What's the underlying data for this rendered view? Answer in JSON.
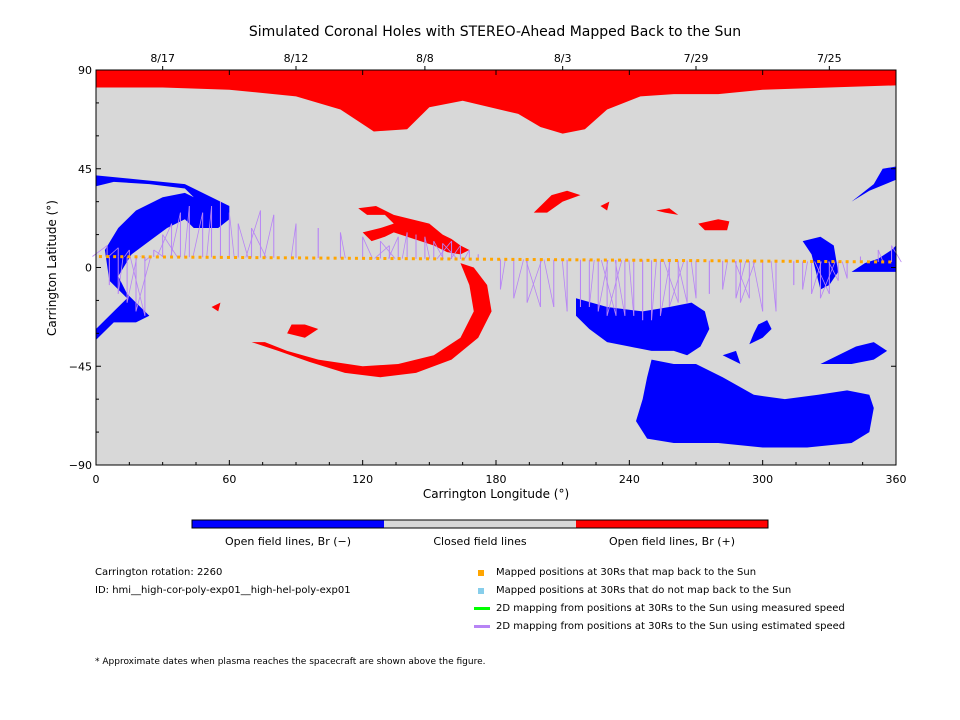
{
  "chart_data": {
    "type": "map",
    "title": "Simulated Coronal Holes with STEREO-Ahead Mapped Back to the Sun",
    "xlabel": "Carrington Longitude (°)",
    "ylabel": "Carrington Latitude (°)",
    "xlim": [
      0,
      360
    ],
    "ylim": [
      -90,
      90
    ],
    "x_ticks": [
      0,
      60,
      120,
      180,
      240,
      300,
      360
    ],
    "y_ticks": [
      -90,
      -45,
      0,
      45,
      90
    ],
    "x_tick_labels": [
      "0",
      "60",
      "120",
      "180",
      "240",
      "300",
      "360"
    ],
    "y_tick_labels": [
      "−90",
      "−45",
      "0",
      "45",
      "90"
    ],
    "top_dates": [
      {
        "label": "8/17",
        "lon": 30
      },
      {
        "label": "8/12",
        "lon": 90
      },
      {
        "label": "8/8",
        "lon": 148
      },
      {
        "label": "8/3",
        "lon": 210
      },
      {
        "label": "7/29",
        "lon": 270
      },
      {
        "label": "7/25",
        "lon": 330
      }
    ],
    "colors": {
      "open_negative": "#0000ff",
      "closed": "#d8d8d8",
      "open_positive": "#ff0000",
      "mapped_back": "#ffa500",
      "not_mapped": "#87ceeb",
      "measured_speed": "#00ff00",
      "estimated_speed": "#b784f5"
    },
    "colorbar": [
      {
        "label": "Open field lines, Br (−)",
        "color": "#0000ff"
      },
      {
        "label": "Closed field lines",
        "color": "#d8d8d8"
      },
      {
        "label": "Open field lines, Br (+)",
        "color": "#ff0000"
      }
    ],
    "legend": [
      {
        "label": "Mapped positions at 30Rs that map back to the Sun",
        "kind": "square",
        "color": "#ffa500"
      },
      {
        "label": "Mapped positions at 30Rs that do not map back to the Sun",
        "kind": "square",
        "color": "#87ceeb"
      },
      {
        "label": "2D mapping from positions at 30Rs to the Sun using measured speed",
        "kind": "line",
        "color": "#00ff00"
      },
      {
        "label": "2D mapping from positions at 30Rs to the Sun using estimated speed",
        "kind": "line",
        "color": "#b784f5"
      }
    ],
    "footpoint_latitude": {
      "start": 5,
      "end": 2.5
    },
    "mapping_links": [
      [
        5,
        10
      ],
      [
        10,
        9
      ],
      [
        15,
        8
      ],
      [
        20,
        5
      ],
      [
        22,
        3
      ],
      [
        26,
        8
      ],
      [
        30,
        15
      ],
      [
        34,
        20
      ],
      [
        38,
        25
      ],
      [
        42,
        28
      ],
      [
        6,
        -8
      ],
      [
        10,
        -12
      ],
      [
        14,
        -16
      ],
      [
        18,
        -20
      ],
      [
        22,
        -22
      ],
      [
        48,
        25
      ],
      [
        52,
        28
      ],
      [
        56,
        30
      ],
      [
        60,
        25
      ],
      [
        64,
        20
      ],
      [
        70,
        18
      ],
      [
        74,
        26
      ],
      [
        80,
        24
      ],
      [
        90,
        20
      ],
      [
        100,
        18
      ],
      [
        110,
        16
      ],
      [
        120,
        14
      ],
      [
        128,
        12
      ],
      [
        132,
        10
      ],
      [
        136,
        14
      ],
      [
        140,
        16
      ],
      [
        144,
        15
      ],
      [
        148,
        14
      ],
      [
        152,
        12
      ],
      [
        156,
        11
      ],
      [
        160,
        12
      ],
      [
        164,
        10
      ],
      [
        168,
        8
      ],
      [
        172,
        6
      ],
      [
        182,
        -10
      ],
      [
        188,
        -14
      ],
      [
        194,
        -16
      ],
      [
        200,
        -18
      ],
      [
        206,
        -18
      ],
      [
        212,
        -20
      ],
      [
        218,
        -18
      ],
      [
        222,
        -18
      ],
      [
        226,
        -20
      ],
      [
        230,
        -22
      ],
      [
        234,
        -22
      ],
      [
        238,
        -22
      ],
      [
        242,
        -22
      ],
      [
        246,
        -24
      ],
      [
        250,
        -24
      ],
      [
        254,
        -22
      ],
      [
        258,
        -18
      ],
      [
        262,
        -16
      ],
      [
        266,
        -16
      ],
      [
        270,
        -14
      ],
      [
        276,
        -12
      ],
      [
        282,
        -10
      ],
      [
        288,
        -14
      ],
      [
        290,
        -16
      ],
      [
        294,
        -14
      ],
      [
        300,
        -20
      ],
      [
        306,
        -20
      ],
      [
        314,
        -8
      ],
      [
        318,
        -10
      ],
      [
        322,
        -12
      ],
      [
        326,
        -14
      ],
      [
        330,
        -12
      ],
      [
        334,
        -6
      ],
      [
        338,
        -5
      ],
      [
        344,
        5
      ],
      [
        352,
        8
      ],
      [
        358,
        10
      ]
    ],
    "regions": {
      "positive": [
        {
          "name": "north-polar-cap",
          "points": [
            [
              0,
              90
            ],
            [
              360,
              90
            ],
            [
              360,
              83
            ],
            [
              330,
              82
            ],
            [
              300,
              81
            ],
            [
              280,
              79
            ],
            [
              260,
              79
            ],
            [
              245,
              78
            ],
            [
              230,
              72
            ],
            [
              220,
              63
            ],
            [
              210,
              61
            ],
            [
              200,
              64
            ],
            [
              190,
              70
            ],
            [
              165,
              76
            ],
            [
              150,
              73
            ],
            [
              140,
              63
            ],
            [
              125,
              62
            ],
            [
              110,
              72
            ],
            [
              90,
              78
            ],
            [
              60,
              81
            ],
            [
              30,
              82
            ],
            [
              0,
              82
            ]
          ]
        },
        {
          "name": "mid-north-arc",
          "points": [
            [
              118,
              27
            ],
            [
              126,
              28
            ],
            [
              134,
              24
            ],
            [
              142,
              22
            ],
            [
              150,
              20
            ],
            [
              156,
              15
            ],
            [
              160,
              13
            ],
            [
              164,
              10
            ],
            [
              168,
              8
            ],
            [
              164,
              6
            ],
            [
              158,
              7
            ],
            [
              152,
              10
            ],
            [
              146,
              12
            ],
            [
              140,
              14
            ],
            [
              134,
              16
            ],
            [
              130,
              14
            ],
            [
              124,
              12
            ],
            [
              120,
              16
            ],
            [
              128,
              18
            ],
            [
              134,
              20
            ],
            [
              130,
              24
            ],
            [
              122,
              24
            ]
          ]
        },
        {
          "name": "small-northeast",
          "points": [
            [
              197,
              25
            ],
            [
              205,
              33
            ],
            [
              212,
              35
            ],
            [
              218,
              33
            ],
            [
              210,
              30
            ],
            [
              203,
              25
            ]
          ]
        },
        {
          "name": "tiny-patch-a",
          "points": [
            [
              227,
              28
            ],
            [
              231,
              30
            ],
            [
              230,
              26
            ]
          ]
        },
        {
          "name": "tiny-patch-b",
          "points": [
            [
              252,
              26
            ],
            [
              258,
              27
            ],
            [
              262,
              24
            ],
            [
              256,
              25
            ]
          ]
        },
        {
          "name": "tiny-patch-c",
          "points": [
            [
              271,
              20
            ],
            [
              280,
              22
            ],
            [
              285,
              21
            ],
            [
              284,
              17
            ],
            [
              274,
              17
            ]
          ]
        },
        {
          "name": "ring-south",
          "points": [
            [
              70,
              -34
            ],
            [
              82,
              -38
            ],
            [
              96,
              -43
            ],
            [
              112,
              -48
            ],
            [
              128,
              -50
            ],
            [
              144,
              -48
            ],
            [
              160,
              -42
            ],
            [
              172,
              -32
            ],
            [
              178,
              -20
            ],
            [
              176,
              -8
            ],
            [
              170,
              0
            ],
            [
              164,
              2
            ],
            [
              168,
              -8
            ],
            [
              170,
              -20
            ],
            [
              164,
              -32
            ],
            [
              152,
              -40
            ],
            [
              136,
              -44
            ],
            [
              120,
              -45
            ],
            [
              100,
              -42
            ],
            [
              86,
              -38
            ],
            [
              76,
              -34
            ]
          ]
        },
        {
          "name": "small-west",
          "points": [
            [
              52,
              -18
            ],
            [
              56,
              -16
            ],
            [
              55,
              -20
            ]
          ]
        },
        {
          "name": "small-mid",
          "points": [
            [
              86,
              -30
            ],
            [
              94,
              -32
            ],
            [
              100,
              -28
            ],
            [
              94,
              -26
            ],
            [
              88,
              -26
            ]
          ]
        }
      ],
      "negative": [
        {
          "name": "left-large",
          "points": [
            [
              0,
              42
            ],
            [
              20,
              40
            ],
            [
              40,
              38
            ],
            [
              52,
              32
            ],
            [
              60,
              28
            ],
            [
              60,
              22
            ],
            [
              55,
              18
            ],
            [
              44,
              18
            ],
            [
              40,
              22
            ],
            [
              32,
              18
            ],
            [
              24,
              12
            ],
            [
              16,
              6
            ],
            [
              10,
              -4
            ],
            [
              14,
              -12
            ],
            [
              24,
              -22
            ],
            [
              18,
              -25
            ],
            [
              8,
              -25
            ],
            [
              0,
              -33
            ],
            [
              0,
              -28
            ],
            [
              8,
              -20
            ],
            [
              14,
              -14
            ],
            [
              6,
              -6
            ],
            [
              4,
              8
            ],
            [
              10,
              18
            ],
            [
              18,
              26
            ],
            [
              30,
              32
            ],
            [
              40,
              34
            ],
            [
              44,
              32
            ],
            [
              40,
              36
            ],
            [
              24,
              38
            ],
            [
              8,
              39
            ],
            [
              0,
              37
            ]
          ]
        },
        {
          "name": "right-wrap",
          "points": [
            [
              354,
              45
            ],
            [
              360,
              46
            ],
            [
              360,
              40
            ],
            [
              348,
              35
            ],
            [
              340,
              30
            ],
            [
              350,
              38
            ]
          ]
        },
        {
          "name": "right-mid",
          "points": [
            [
              318,
              12
            ],
            [
              326,
              14
            ],
            [
              332,
              10
            ],
            [
              334,
              -2
            ],
            [
              330,
              -8
            ],
            [
              326,
              -10
            ],
            [
              324,
              -2
            ],
            [
              322,
              6
            ]
          ]
        },
        {
          "name": "right-small",
          "points": [
            [
              340,
              -2
            ],
            [
              346,
              2
            ],
            [
              352,
              4
            ],
            [
              358,
              8
            ],
            [
              360,
              10
            ],
            [
              360,
              -2
            ],
            [
              352,
              -2
            ]
          ]
        },
        {
          "name": "south-central",
          "points": [
            [
              216,
              -14
            ],
            [
              230,
              -18
            ],
            [
              246,
              -20
            ],
            [
              258,
              -18
            ],
            [
              268,
              -16
            ],
            [
              274,
              -20
            ],
            [
              276,
              -28
            ],
            [
              272,
              -36
            ],
            [
              266,
              -40
            ],
            [
              260,
              -38
            ],
            [
              250,
              -38
            ],
            [
              240,
              -36
            ],
            [
              230,
              -34
            ],
            [
              222,
              -28
            ],
            [
              216,
              -22
            ]
          ]
        },
        {
          "name": "south-elongated",
          "points": [
            [
              250,
              -42
            ],
            [
              260,
              -44
            ],
            [
              270,
              -44
            ],
            [
              282,
              -50
            ],
            [
              296,
              -58
            ],
            [
              310,
              -60
            ],
            [
              325,
              -58
            ],
            [
              338,
              -56
            ],
            [
              348,
              -58
            ],
            [
              350,
              -64
            ],
            [
              348,
              -75
            ],
            [
              340,
              -80
            ],
            [
              320,
              -82
            ],
            [
              300,
              -82
            ],
            [
              280,
              -80
            ],
            [
              260,
              -80
            ],
            [
              248,
              -78
            ],
            [
              243,
              -70
            ],
            [
              246,
              -60
            ],
            [
              248,
              -50
            ]
          ]
        },
        {
          "name": "south-finger",
          "points": [
            [
              294,
              -35
            ],
            [
              300,
              -32
            ],
            [
              304,
              -28
            ],
            [
              302,
              -24
            ],
            [
              298,
              -26
            ],
            [
              296,
              -30
            ]
          ]
        },
        {
          "name": "south-right",
          "points": [
            [
              326,
              -44
            ],
            [
              334,
              -40
            ],
            [
              342,
              -36
            ],
            [
              350,
              -34
            ],
            [
              356,
              -38
            ],
            [
              350,
              -42
            ],
            [
              340,
              -44
            ]
          ]
        },
        {
          "name": "south-small",
          "points": [
            [
              282,
              -40
            ],
            [
              288,
              -38
            ],
            [
              290,
              -44
            ]
          ]
        }
      ]
    }
  },
  "info": {
    "rotation": "Carrington rotation: 2260",
    "id": "ID: hmi__high-cor-poly-exp01__high-hel-poly-exp01"
  },
  "footnote": "* Approximate dates when plasma reaches the spacecraft are shown above the figure."
}
